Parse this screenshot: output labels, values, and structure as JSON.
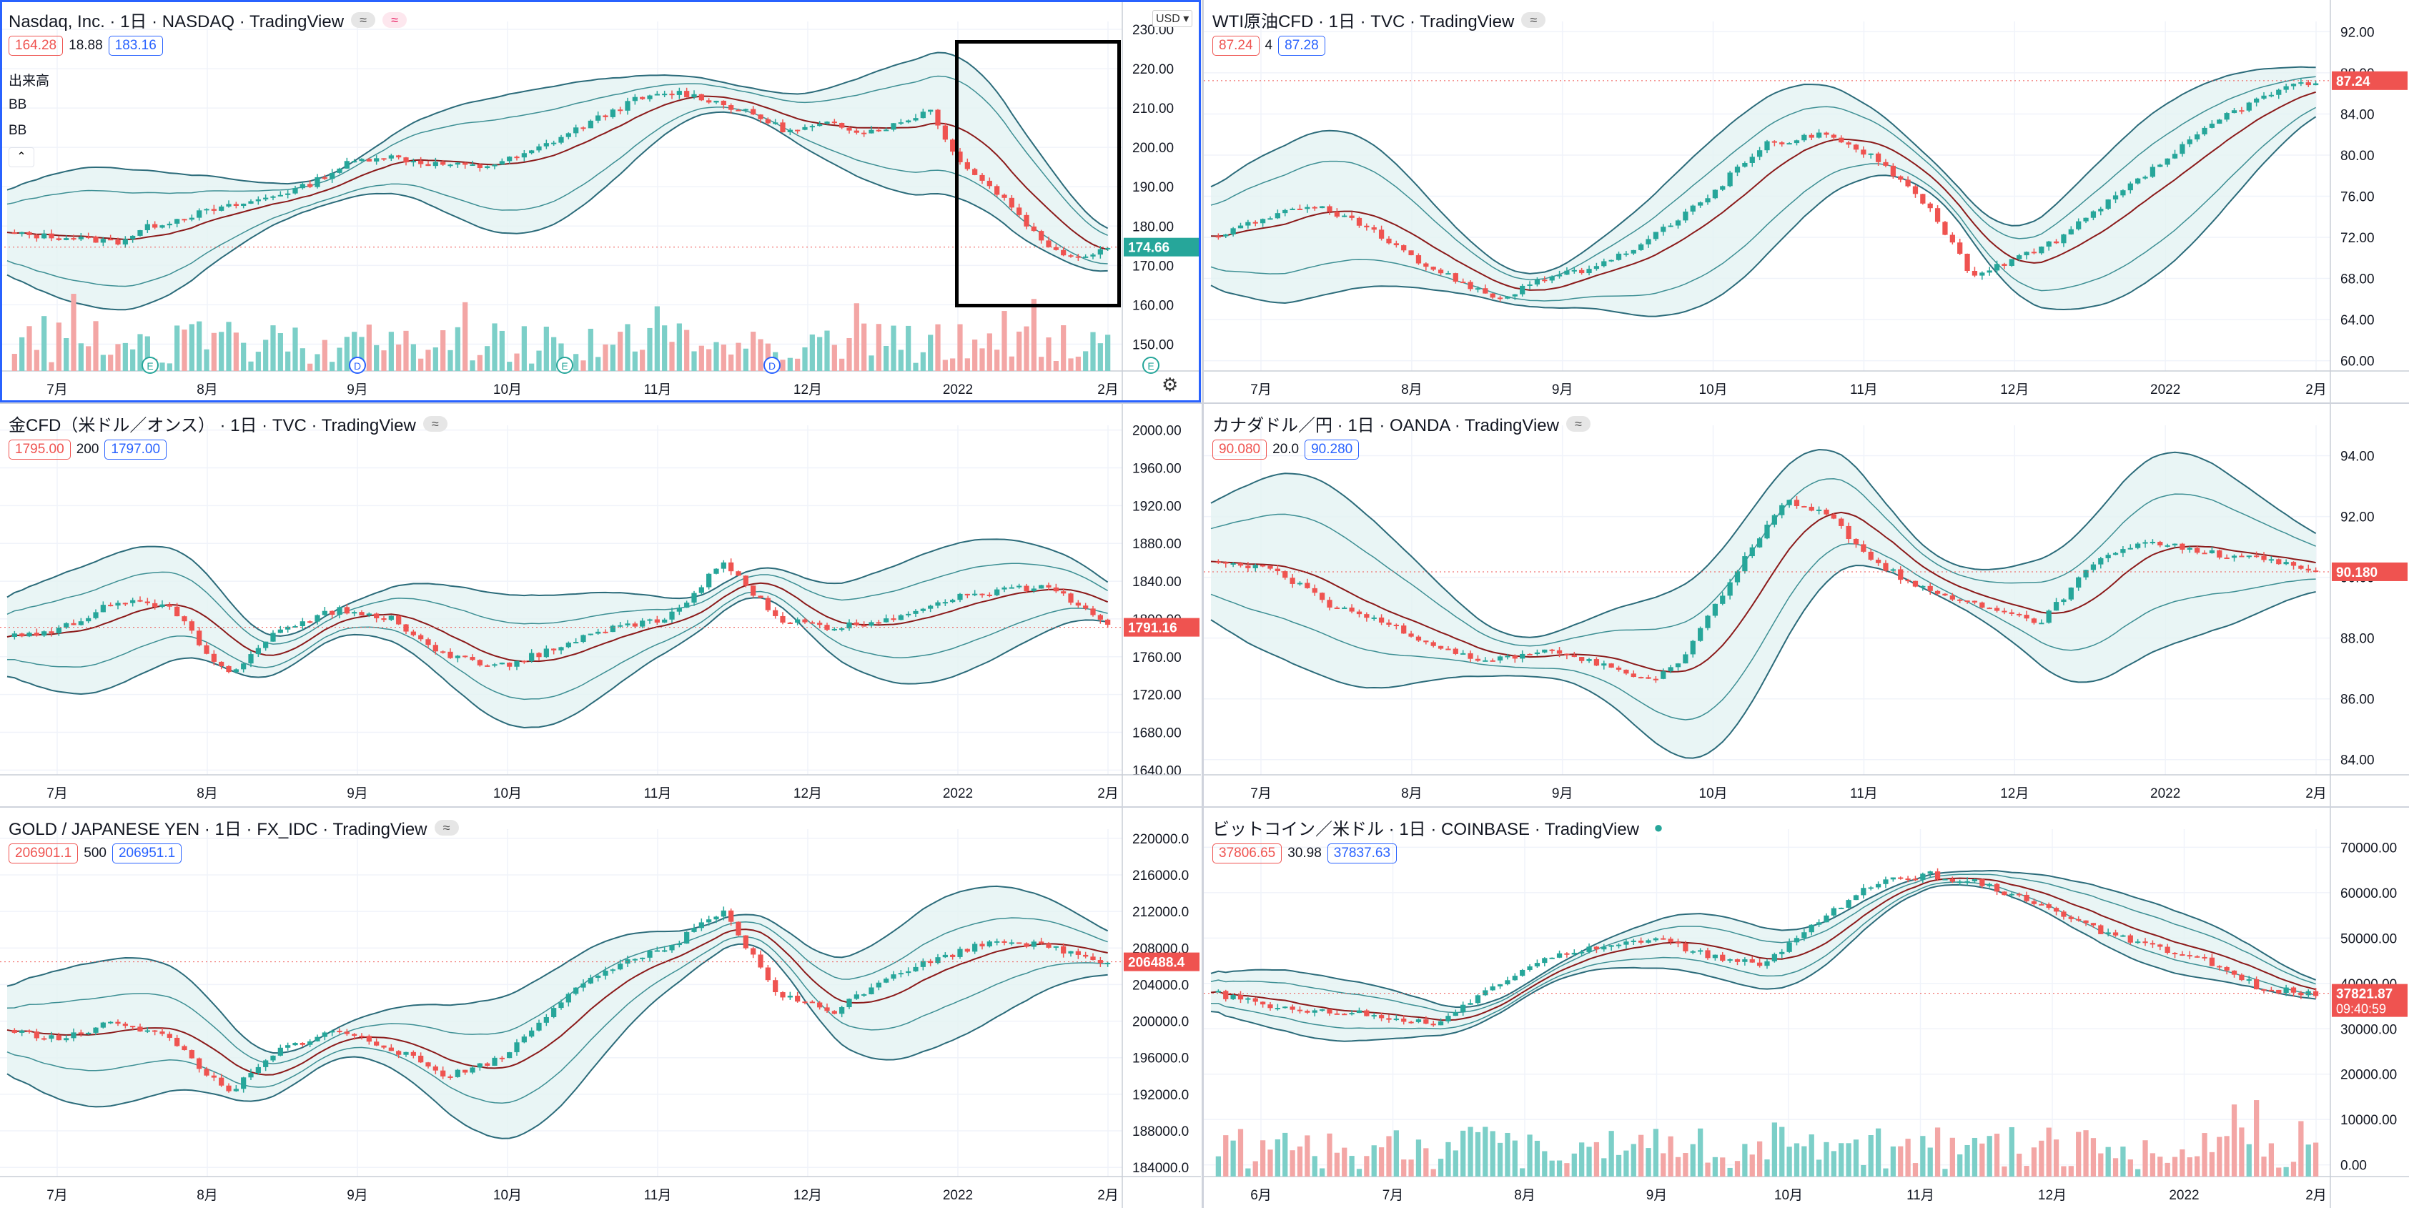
{
  "colors": {
    "up": "#26a69a",
    "down": "#ef5350",
    "bb": "#2b6b7a",
    "basis": "#8b1a1a",
    "bbfill": "#e3f3f3",
    "grid": "#f0f3fa",
    "axisText": "#131722",
    "active": "#2962ff"
  },
  "panels": [
    {
      "id": "nasdaq",
      "title": "Nasdaq, Inc. · 1日 · NASDAQ · TradingView",
      "badges": [
        "≈",
        "≈"
      ],
      "quote": {
        "sell": "164.28",
        "spread": "18.88",
        "buy": "183.16"
      },
      "indicators": [
        "出来高",
        "BB",
        "BB"
      ],
      "currency_box": "USD",
      "last_price": "174.66",
      "active": true
    },
    {
      "id": "wti",
      "title": "WTI原油CFD · 1日 · TVC · TradingView",
      "badges": [
        "≈"
      ],
      "quote": {
        "sell": "87.24",
        "spread": "4",
        "buy": "87.28"
      },
      "last_price": "87.24"
    },
    {
      "id": "gold",
      "title": "金CFD（米ドル／オンス） · 1日 · TVC · TradingView",
      "badges": [
        "≈"
      ],
      "quote": {
        "sell": "1795.00",
        "spread": "200",
        "buy": "1797.00"
      },
      "last_price": "1791.16"
    },
    {
      "id": "cadjpy",
      "title": "カナダドル／円 · 1日 · OANDA · TradingView",
      "badges": [
        "≈"
      ],
      "quote": {
        "sell": "90.080",
        "spread": "20.0",
        "buy": "90.280"
      },
      "last_price": "90.180"
    },
    {
      "id": "goldjpy",
      "title": "GOLD / JAPANESE YEN · 1日 · FX_IDC · TradingView",
      "badges": [
        "≈"
      ],
      "quote": {
        "sell": "206901.1",
        "spread": "500",
        "buy": "206951.1"
      },
      "last_price": "206488.4"
    },
    {
      "id": "btc",
      "title": "ビットコイン／米ドル · 1日 · COINBASE · TradingView",
      "badges": [
        "●"
      ],
      "quote": {
        "sell": "37806.65",
        "spread": "30.98",
        "buy": "37837.63"
      },
      "last_price": "37821.87",
      "countdown": "09:40:59"
    }
  ],
  "chart_data": [
    {
      "type": "candlestick",
      "panel": "nasdaq",
      "title": "Nasdaq, Inc. · 1日 · NASDAQ",
      "x_ticks": [
        "7月",
        "8月",
        "9月",
        "10月",
        "11月",
        "12月",
        "2022",
        "2月"
      ],
      "y_ticks": [
        "150.00",
        "160.00",
        "170.00",
        "180.00",
        "190.00",
        "200.00",
        "210.00",
        "220.00",
        "230.00"
      ],
      "ylim": [
        145,
        232
      ],
      "close_path": [
        [
          0,
          178
        ],
        [
          0.06,
          177
        ],
        [
          0.1,
          176
        ],
        [
          0.13,
          180
        ],
        [
          0.17,
          183
        ],
        [
          0.22,
          186
        ],
        [
          0.27,
          190
        ],
        [
          0.31,
          196
        ],
        [
          0.34,
          198
        ],
        [
          0.38,
          196
        ],
        [
          0.43,
          195
        ],
        [
          0.47,
          198
        ],
        [
          0.52,
          205
        ],
        [
          0.57,
          212
        ],
        [
          0.61,
          214
        ],
        [
          0.64,
          212
        ],
        [
          0.68,
          208
        ],
        [
          0.71,
          204
        ],
        [
          0.75,
          206
        ],
        [
          0.78,
          204
        ],
        [
          0.81,
          206
        ],
        [
          0.84,
          210
        ],
        [
          0.855,
          200
        ],
        [
          0.88,
          193
        ],
        [
          0.91,
          186
        ],
        [
          0.94,
          176
        ],
        [
          0.97,
          172
        ],
        [
          1.0,
          174.66
        ]
      ],
      "band": [
        18,
        12
      ],
      "volume": true,
      "event_markers": [
        "E",
        "D",
        "E",
        "D",
        "E"
      ],
      "last": 174.66
    },
    {
      "type": "candlestick",
      "panel": "wti",
      "title": "WTI原油CFD · 1日 · TVC",
      "x_ticks": [
        "7月",
        "8月",
        "9月",
        "10月",
        "11月",
        "12月",
        "2022",
        "2月"
      ],
      "y_ticks": [
        "60.00",
        "64.00",
        "68.00",
        "72.00",
        "76.00",
        "80.00",
        "84.00",
        "88.00",
        "92.00"
      ],
      "ylim": [
        59,
        93
      ],
      "close_path": [
        [
          0,
          72
        ],
        [
          0.05,
          74
        ],
        [
          0.1,
          75
        ],
        [
          0.14,
          73
        ],
        [
          0.18,
          70
        ],
        [
          0.22,
          68
        ],
        [
          0.26,
          66
        ],
        [
          0.3,
          68
        ],
        [
          0.35,
          69
        ],
        [
          0.4,
          72
        ],
        [
          0.45,
          76
        ],
        [
          0.5,
          81
        ],
        [
          0.55,
          82
        ],
        [
          0.6,
          80
        ],
        [
          0.65,
          75
        ],
        [
          0.69,
          68
        ],
        [
          0.73,
          70
        ],
        [
          0.77,
          72
        ],
        [
          0.82,
          76
        ],
        [
          0.87,
          80
        ],
        [
          0.92,
          84
        ],
        [
          0.96,
          86
        ],
        [
          1.0,
          87.24
        ]
      ],
      "band": [
        8,
        5
      ],
      "last": 87.24
    },
    {
      "type": "candlestick",
      "panel": "gold",
      "title": "金CFD（米ドル／オンス） · 1日 · TVC",
      "x_ticks": [
        "7月",
        "8月",
        "9月",
        "10月",
        "11月",
        "12月",
        "2022",
        "2月"
      ],
      "y_ticks": [
        "1640.00",
        "1680.00",
        "1720.00",
        "1760.00",
        "1800.00",
        "1840.00",
        "1880.00",
        "1920.00",
        "1960.00",
        "2000.00"
      ],
      "ylim": [
        1635,
        2005
      ],
      "close_path": [
        [
          0,
          1780
        ],
        [
          0.05,
          1790
        ],
        [
          0.1,
          1820
        ],
        [
          0.15,
          1810
        ],
        [
          0.2,
          1740
        ],
        [
          0.25,
          1790
        ],
        [
          0.3,
          1810
        ],
        [
          0.35,
          1800
        ],
        [
          0.4,
          1760
        ],
        [
          0.45,
          1750
        ],
        [
          0.5,
          1770
        ],
        [
          0.55,
          1790
        ],
        [
          0.6,
          1800
        ],
        [
          0.65,
          1860
        ],
        [
          0.7,
          1800
        ],
        [
          0.75,
          1790
        ],
        [
          0.8,
          1800
        ],
        [
          0.85,
          1820
        ],
        [
          0.9,
          1830
        ],
        [
          0.95,
          1835
        ],
        [
          1.0,
          1791.16
        ]
      ],
      "band": [
        70,
        40
      ],
      "last": 1791.16
    },
    {
      "type": "candlestick",
      "panel": "cadjpy",
      "title": "カナダドル／円 · 1日 · OANDA",
      "x_ticks": [
        "7月",
        "8月",
        "9月",
        "10月",
        "11月",
        "12月",
        "2022",
        "2月"
      ],
      "y_ticks": [
        "84.00",
        "86.00",
        "88.00",
        "90.00",
        "92.00",
        "94.00"
      ],
      "ylim": [
        83.5,
        95
      ],
      "close_path": [
        [
          0,
          90.5
        ],
        [
          0.06,
          90.2
        ],
        [
          0.11,
          89
        ],
        [
          0.16,
          88.5
        ],
        [
          0.2,
          87.8
        ],
        [
          0.25,
          87.2
        ],
        [
          0.3,
          87.6
        ],
        [
          0.35,
          87.2
        ],
        [
          0.4,
          86.5
        ],
        [
          0.43,
          87.5
        ],
        [
          0.48,
          90.5
        ],
        [
          0.52,
          92.5
        ],
        [
          0.56,
          92
        ],
        [
          0.6,
          90.5
        ],
        [
          0.65,
          89.5
        ],
        [
          0.7,
          89
        ],
        [
          0.75,
          88.5
        ],
        [
          0.8,
          90.5
        ],
        [
          0.85,
          91.2
        ],
        [
          0.9,
          90.8
        ],
        [
          0.95,
          90.6
        ],
        [
          1.0,
          90.18
        ]
      ],
      "band": [
        3.2,
        1.8
      ],
      "last": 90.18
    },
    {
      "type": "candlestick",
      "panel": "goldjpy",
      "title": "GOLD / JAPANESE YEN · 1日 · FX_IDC",
      "x_ticks": [
        "7月",
        "8月",
        "9月",
        "10月",
        "11月",
        "12月",
        "2022",
        "2月"
      ],
      "y_ticks": [
        "184000.0",
        "188000.0",
        "192000.0",
        "196000.0",
        "200000.0",
        "204000.0",
        "208000.0",
        "212000.0",
        "216000.0",
        "220000.0"
      ],
      "ylim": [
        183000,
        221000
      ],
      "close_path": [
        [
          0,
          199000
        ],
        [
          0.05,
          198000
        ],
        [
          0.1,
          200000
        ],
        [
          0.15,
          198000
        ],
        [
          0.2,
          192000
        ],
        [
          0.25,
          197000
        ],
        [
          0.3,
          199000
        ],
        [
          0.35,
          197000
        ],
        [
          0.4,
          194000
        ],
        [
          0.45,
          196000
        ],
        [
          0.5,
          202000
        ],
        [
          0.55,
          206000
        ],
        [
          0.6,
          208000
        ],
        [
          0.65,
          212000
        ],
        [
          0.7,
          203000
        ],
        [
          0.75,
          201000
        ],
        [
          0.8,
          205000
        ],
        [
          0.85,
          207000
        ],
        [
          0.9,
          209000
        ],
        [
          0.95,
          208000
        ],
        [
          1.0,
          206488.4
        ]
      ],
      "band": [
        8000,
        4000
      ],
      "last": 206488.4
    },
    {
      "type": "candlestick",
      "panel": "btc",
      "title": "ビットコイン／米ドル · 1日 · COINBASE",
      "x_ticks": [
        "6月",
        "7月",
        "8月",
        "9月",
        "10月",
        "11月",
        "12月",
        "2022",
        "2月"
      ],
      "y_ticks": [
        "0.00",
        "10000.00",
        "20000.00",
        "30000.00",
        "40000.00",
        "50000.00",
        "60000.00",
        "70000.00"
      ],
      "ylim": [
        -1000,
        74000
      ],
      "close_path": [
        [
          0,
          38000
        ],
        [
          0.05,
          35000
        ],
        [
          0.1,
          34000
        ],
        [
          0.15,
          33000
        ],
        [
          0.2,
          31000
        ],
        [
          0.25,
          38000
        ],
        [
          0.3,
          46000
        ],
        [
          0.35,
          48000
        ],
        [
          0.4,
          50000
        ],
        [
          0.45,
          46000
        ],
        [
          0.5,
          44000
        ],
        [
          0.55,
          54000
        ],
        [
          0.6,
          62000
        ],
        [
          0.65,
          64000
        ],
        [
          0.7,
          62000
        ],
        [
          0.75,
          57000
        ],
        [
          0.8,
          52000
        ],
        [
          0.85,
          48000
        ],
        [
          0.9,
          45000
        ],
        [
          0.95,
          39000
        ],
        [
          1.0,
          37821.87
        ]
      ],
      "band": [
        7000,
        4000
      ],
      "volume": true,
      "last": 37821.87
    }
  ]
}
